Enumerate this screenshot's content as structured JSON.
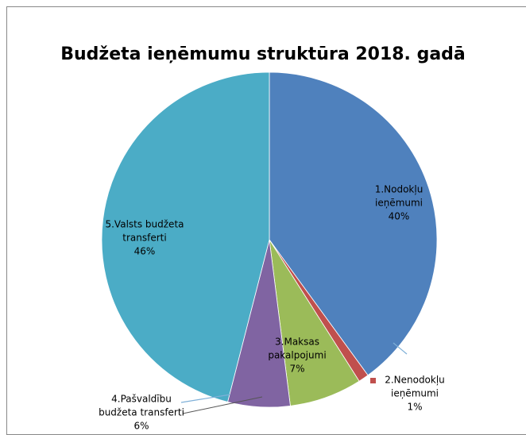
{
  "chart_data": {
    "type": "pie",
    "title": "Budžeta ieņēmumu struktūra 2018. gadā",
    "categories": [
      "1.Nodokļu ieņēmumi",
      "2.Nenodokļu ieņēmumi",
      "3.Maksas pakalpojumi",
      "4.Pašvaldību budžeta transferti",
      "5.Valsts budžeta transferti"
    ],
    "values": [
      40,
      1,
      7,
      6,
      46
    ],
    "value_labels": [
      "40%",
      "1%",
      "7%",
      "6%",
      "46%"
    ],
    "colors": [
      "#4f81bd",
      "#c0504d",
      "#9bbb59",
      "#8064a2",
      "#4bacc6"
    ]
  }
}
